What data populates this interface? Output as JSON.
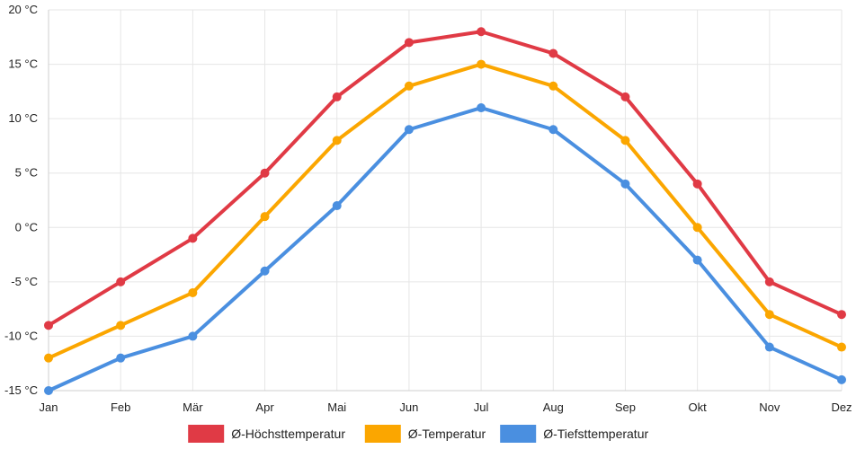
{
  "chart_data": {
    "type": "line",
    "title": "",
    "xlabel": "",
    "ylabel": "",
    "categories": [
      "Jan",
      "Feb",
      "Mär",
      "Apr",
      "Mai",
      "Jun",
      "Jul",
      "Aug",
      "Sep",
      "Okt",
      "Nov",
      "Dez"
    ],
    "ylim": [
      -15,
      20
    ],
    "yticks": [
      20,
      15,
      10,
      5,
      0,
      -5,
      -10,
      -15
    ],
    "ytick_labels": [
      "20 °C",
      "15 °C",
      "10 °C",
      "5 °C",
      "0 °C",
      "-5 °C",
      "-10 °C",
      "-15 °C"
    ],
    "grid": true,
    "legend_position": "bottom-center",
    "series": [
      {
        "name": "Ø-Höchsttemperatur",
        "color": "#e03a45",
        "values": [
          -9,
          -5,
          -1,
          5,
          12,
          17,
          18,
          16,
          12,
          4,
          -5,
          -8
        ]
      },
      {
        "name": "Ø-Temperatur",
        "color": "#fba600",
        "values": [
          -12,
          -9,
          -6,
          1,
          8,
          13,
          15,
          13,
          8,
          0,
          -8,
          -11
        ]
      },
      {
        "name": "Ø-Tiefsttemperatur",
        "color": "#4a8fe0",
        "values": [
          -15,
          -12,
          -10,
          -4,
          2,
          9,
          11,
          9,
          4,
          -3,
          -11,
          -14
        ]
      }
    ]
  }
}
